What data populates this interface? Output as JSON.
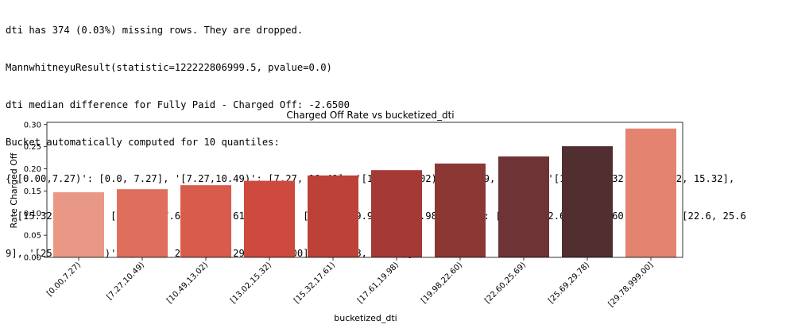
{
  "console_lines": [
    "dti has 374 (0.03%) missing rows. They are dropped.",
    "MannwhitneyuResult(statistic=122222806999.5, pvalue=0.0)",
    "dti median difference for Fully Paid - Charged Off: -2.6500",
    "Bucket automatically computed for 10 quantiles:",
    "{'[0.00,7.27)': [0.0, 7.27], '[7.27,10.49)': [7.27, 10.49], '[10.49,13.02)': [10.49, 13.02], '[13.02,15.32)': [13.02, 15.32],",
    " '[15.32,17.61)': [15.32, 17.61], '[17.61,19.98)': [17.61, 19.98], '[19.98,22.60)': [19.98, 22.6], '[22.60,25.69)': [22.6, 25.6",
    "9], '[25.69,29.78)': [25.69, 29.78], '[29.78,999.00]': [29.78, 999.0]}"
  ],
  "chart_data": {
    "type": "bar",
    "title": "Charged Off Rate vs bucketized_dti",
    "xlabel": "bucketized_dti",
    "ylabel": "Rate Charged Off",
    "categories": [
      "[0.00,7.27)",
      "[7.27,10.49)",
      "[10.49,13.02)",
      "[13.02,15.32)",
      "[15.32,17.61)",
      "[17.61,19.98)",
      "[19.98,22.60)",
      "[22.60,25.69)",
      "[25.69,29.78)",
      "[29.78,999.00]"
    ],
    "values": [
      0.147,
      0.154,
      0.163,
      0.173,
      0.185,
      0.197,
      0.212,
      0.228,
      0.251,
      0.291
    ],
    "colors": [
      "#e89884",
      "#e06e5c",
      "#d85b4c",
      "#cf4a3e",
      "#bb4139",
      "#a53936",
      "#8b3835",
      "#6e3334",
      "#512e30",
      "#e38370"
    ],
    "ylim": [
      0,
      0.305
    ],
    "yticks": [
      "0.00",
      "0.05",
      "0.10",
      "0.15",
      "0.20",
      "0.25",
      "0.30"
    ],
    "grid": false
  }
}
